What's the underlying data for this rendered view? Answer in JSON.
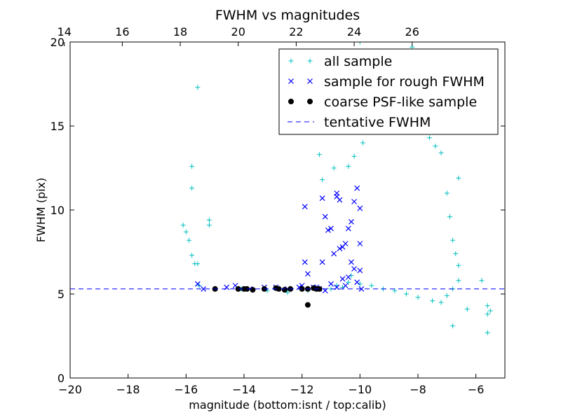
{
  "chart_data": {
    "type": "scatter",
    "title": "FWHM vs magnitudes",
    "xlabel": "magnitude (bottom:isnt / top:calib)",
    "ylabel": "FWHM (pix)",
    "xlim": [
      -20,
      -5
    ],
    "ylim": [
      0,
      20
    ],
    "x_ticks": [
      -20,
      -18,
      -16,
      -14,
      -12,
      -10,
      -8,
      -6
    ],
    "x_tick_labels": [
      "−20",
      "−18",
      "−16",
      "−14",
      "−12",
      "−10",
      "−8",
      "−6"
    ],
    "y_ticks": [
      0,
      5,
      10,
      15,
      20
    ],
    "y_tick_labels": [
      "0",
      "5",
      "10",
      "15",
      "20"
    ],
    "top_x_ticks": [
      14,
      16,
      18,
      20,
      22,
      24,
      26
    ],
    "top_x_tick_labels": [
      "14",
      "16",
      "18",
      "20",
      "22",
      "24",
      "26"
    ],
    "top_axis_offset": 34.2,
    "legend_position": "upper-right",
    "grid": false,
    "series": [
      {
        "name": "all sample",
        "marker": "plus",
        "color": "#00bfbf",
        "points": [
          [
            -15.6,
            17.3
          ],
          [
            -16.1,
            9.1
          ],
          [
            -16.0,
            8.7
          ],
          [
            -15.8,
            12.6
          ],
          [
            -15.8,
            11.3
          ],
          [
            -15.9,
            8.2
          ],
          [
            -15.8,
            7.3
          ],
          [
            -15.7,
            6.8
          ],
          [
            -15.6,
            6.8
          ],
          [
            -15.55,
            5.5
          ],
          [
            -15.2,
            9.4
          ],
          [
            -15.2,
            9.1
          ],
          [
            -14.1,
            5.3
          ],
          [
            -13.2,
            5.2
          ],
          [
            -12.5,
            5.1
          ],
          [
            -11.8,
            5.2
          ],
          [
            -11.4,
            13.3
          ],
          [
            -11.3,
            11.8
          ],
          [
            -10.9,
            12.5
          ],
          [
            -11.0,
            5.3
          ],
          [
            -10.3,
            6.1
          ],
          [
            -10.0,
            20.0
          ],
          [
            -9.7,
            16.8
          ],
          [
            -9.5,
            16.2
          ],
          [
            -9.3,
            15.4
          ],
          [
            -8.7,
            19.3
          ],
          [
            -8.2,
            19.7
          ],
          [
            -6.6,
            11.9
          ],
          [
            -5.8,
            5.8
          ],
          [
            -5.6,
            4.3
          ],
          [
            -5.5,
            4.0
          ],
          [
            -5.6,
            3.8
          ],
          [
            -5.6,
            2.7
          ],
          [
            -6.3,
            4.1
          ],
          [
            -6.8,
            3.1
          ],
          [
            -10.4,
            12.6
          ],
          [
            -10.2,
            13.2
          ],
          [
            -9.9,
            14.0
          ],
          [
            -9.6,
            15.0
          ],
          [
            -9.1,
            14.7
          ],
          [
            -8.5,
            15.0
          ],
          [
            -8.1,
            15.5
          ],
          [
            -7.6,
            14.3
          ],
          [
            -7.4,
            13.8
          ],
          [
            -7.2,
            13.4
          ],
          [
            -7.0,
            11.0
          ],
          [
            -6.9,
            9.6
          ],
          [
            -6.8,
            8.2
          ],
          [
            -6.7,
            7.4
          ],
          [
            -6.6,
            6.7
          ],
          [
            -6.6,
            5.8
          ],
          [
            -6.8,
            5.3
          ],
          [
            -7.0,
            4.9
          ],
          [
            -7.2,
            4.5
          ],
          [
            -7.5,
            4.6
          ],
          [
            -8.0,
            4.8
          ],
          [
            -8.4,
            5.0
          ],
          [
            -8.8,
            5.2
          ],
          [
            -9.2,
            5.3
          ],
          [
            -9.6,
            5.5
          ],
          [
            -10.0,
            5.6
          ],
          [
            -10.4,
            5.7
          ],
          [
            -10.6,
            5.4
          ],
          [
            -10.8,
            5.5
          ]
        ]
      },
      {
        "name": "sample for rough FWHM",
        "marker": "x",
        "color": "#0000ff",
        "points": [
          [
            -15.6,
            5.6
          ],
          [
            -15.4,
            5.3
          ],
          [
            -14.6,
            5.4
          ],
          [
            -14.3,
            5.5
          ],
          [
            -13.8,
            5.3
          ],
          [
            -13.3,
            5.4
          ],
          [
            -12.9,
            5.4
          ],
          [
            -12.5,
            5.3
          ],
          [
            -12.1,
            5.4
          ],
          [
            -12.0,
            5.5
          ],
          [
            -11.9,
            10.2
          ],
          [
            -11.9,
            6.9
          ],
          [
            -11.8,
            6.2
          ],
          [
            -11.6,
            5.4
          ],
          [
            -11.4,
            5.3
          ],
          [
            -11.3,
            10.7
          ],
          [
            -11.2,
            9.6
          ],
          [
            -11.1,
            8.8
          ],
          [
            -11.3,
            6.9
          ],
          [
            -11.0,
            5.6
          ],
          [
            -10.8,
            11.0
          ],
          [
            -10.8,
            10.8
          ],
          [
            -10.7,
            7.7
          ],
          [
            -10.6,
            7.8
          ],
          [
            -10.5,
            8.0
          ],
          [
            -10.5,
            5.5
          ],
          [
            -10.4,
            6.0
          ],
          [
            -10.3,
            9.3
          ],
          [
            -10.2,
            10.5
          ],
          [
            -10.1,
            11.3
          ],
          [
            -10.0,
            10.1
          ],
          [
            -10.0,
            8.0
          ],
          [
            -10.0,
            6.4
          ],
          [
            -9.95,
            5.3
          ],
          [
            -10.8,
            5.4
          ],
          [
            -11.0,
            8.9
          ],
          [
            -10.7,
            10.6
          ],
          [
            -10.4,
            8.9
          ],
          [
            -10.3,
            6.9
          ],
          [
            -10.6,
            5.9
          ],
          [
            -11.2,
            5.2
          ],
          [
            -11.5,
            5.4
          ],
          [
            -10.1,
            5.7
          ],
          [
            -10.9,
            7.4
          ],
          [
            -10.2,
            6.5
          ]
        ]
      },
      {
        "name": "coarse PSF-like sample",
        "marker": "dot",
        "color": "#000000",
        "points": [
          [
            -15.0,
            5.3
          ],
          [
            -14.2,
            5.3
          ],
          [
            -14.0,
            5.3
          ],
          [
            -13.9,
            5.3
          ],
          [
            -13.7,
            5.25
          ],
          [
            -13.3,
            5.3
          ],
          [
            -12.9,
            5.35
          ],
          [
            -12.8,
            5.3
          ],
          [
            -12.6,
            5.25
          ],
          [
            -12.4,
            5.3
          ],
          [
            -12.0,
            5.3
          ],
          [
            -11.8,
            5.3
          ],
          [
            -11.6,
            5.35
          ],
          [
            -11.5,
            5.3
          ],
          [
            -11.4,
            5.3
          ],
          [
            -11.8,
            4.35
          ]
        ]
      },
      {
        "name": "tentative FWHM",
        "marker": "dashed-line",
        "color": "#0000ff",
        "value": 5.3
      }
    ]
  }
}
